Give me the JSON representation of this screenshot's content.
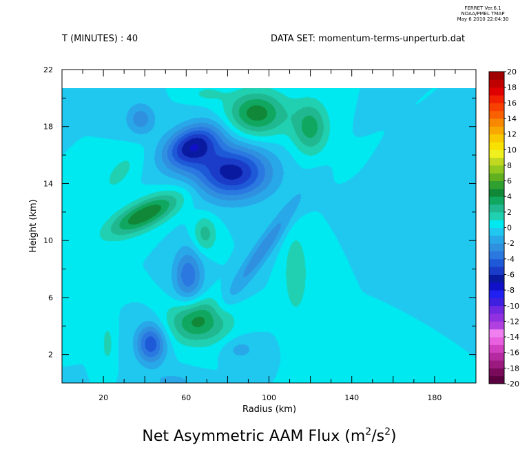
{
  "header": {
    "ferret_version": "FERRET Ver.6.1",
    "ferret_org": "NOAA/PMEL TMAP",
    "ferret_date": "May  6 2010 22:04:30",
    "time_label": "T (MINUTES) : 40",
    "dataset_label": "DATA SET: momentum-terms-unperturb.dat"
  },
  "chart_data": {
    "type": "heatmap",
    "title": "Net Asymmetric AAM Flux (m",
    "title_unit_sup1": "2",
    "title_unit_mid": "/s",
    "title_unit_sup2": "2",
    "title_close": ")",
    "xlabel": "Radius (km)",
    "ylabel": "Height (km)",
    "xlim": [
      0,
      200
    ],
    "ylim": [
      0,
      22
    ],
    "data_ylim": [
      0,
      21
    ],
    "x_ticks": [
      20,
      60,
      100,
      140,
      180
    ],
    "y_ticks": [
      2,
      6,
      10,
      14,
      18
    ],
    "x_ticklabels": [
      "20",
      "60",
      "100",
      "140",
      "180"
    ],
    "y_ticklabels": [
      "2",
      "6",
      "10",
      "14",
      "18",
      "22"
    ],
    "y_ticklabel_values": [
      2,
      6,
      10,
      14,
      18,
      22
    ],
    "colorbar": {
      "levels": [
        -20,
        -19,
        -18,
        -17,
        -16,
        -15,
        -14,
        -13,
        -12,
        -11,
        -10,
        -9,
        -8,
        -7,
        -6,
        -5,
        -4,
        -3,
        -2,
        -1,
        0,
        1,
        2,
        3,
        4,
        5,
        6,
        7,
        8,
        9,
        10,
        11,
        12,
        13,
        14,
        15,
        16,
        17,
        18,
        19,
        20
      ],
      "labels": [
        "20",
        "18",
        "16",
        "14",
        "12",
        "10",
        "8",
        "6",
        "4",
        "2",
        "0",
        "-2",
        "-4",
        "-6",
        "-8",
        "-10",
        "-12",
        "-14",
        "-16",
        "-18",
        "-20"
      ],
      "label_values": [
        20,
        18,
        16,
        14,
        12,
        10,
        8,
        6,
        4,
        2,
        0,
        -2,
        -4,
        -6,
        -8,
        -10,
        -12,
        -14,
        -16,
        -18,
        -20
      ],
      "colors": [
        "#5a0040",
        "#7a0a5a",
        "#9a1a80",
        "#b52aa0",
        "#d040c0",
        "#e860e0",
        "#f080f0",
        "#b040e0",
        "#9030e0",
        "#7028e0",
        "#4020e0",
        "#2020f0",
        "#1010c8",
        "#0a1aa0",
        "#1a3cc8",
        "#1e5ad8",
        "#2a78e0",
        "#3090e0",
        "#28a8e8",
        "#20c8f0",
        "#00e8f0",
        "#20d0b0",
        "#20b890",
        "#10a860",
        "#108838",
        "#30a030",
        "#60b020",
        "#90c820",
        "#c0d820",
        "#f0f020",
        "#f8e000",
        "#f8c800",
        "#f8a800",
        "#f88800",
        "#f86000",
        "#f84000",
        "#f02000",
        "#e00000",
        "#c00000",
        "#a00000",
        "#700000"
      ]
    },
    "features": [
      {
        "x": 43,
        "y": 2.8,
        "sx": 5,
        "sy": 1.0,
        "v": -4.8
      },
      {
        "x": 54,
        "y": 0.1,
        "sx": 8,
        "sy": 0.5,
        "v": -1.3
      },
      {
        "x": 22,
        "y": 2.8,
        "sx": 2,
        "sy": 1.0,
        "v": 1.5
      },
      {
        "x": 66,
        "y": 4.4,
        "sx": 10,
        "sy": 1.1,
        "v": 4.5
      },
      {
        "x": 86,
        "y": 2.4,
        "sx": 6,
        "sy": 0.6,
        "v": -1.4
      },
      {
        "x": 61,
        "y": 7.6,
        "sx": 5,
        "sy": 1.4,
        "v": -3.8
      },
      {
        "x": 69,
        "y": 10.6,
        "sx": 4,
        "sy": 0.9,
        "v": 2.5
      },
      {
        "x": 40,
        "y": 12.0,
        "sx": 6,
        "sy": 1.5,
        "v": 5.0,
        "rot": -50
      },
      {
        "x": 97,
        "y": 9.5,
        "sx": 3.5,
        "sy": 3.0,
        "v": -2.6,
        "rot": -25
      },
      {
        "x": 113,
        "y": 7.8,
        "sx": 4,
        "sy": 2.0,
        "v": 2.0
      },
      {
        "x": 82,
        "y": 15.0,
        "sx": 13,
        "sy": 1.3,
        "v": -6.5,
        "rot": -40
      },
      {
        "x": 63,
        "y": 16.9,
        "sx": 8,
        "sy": 1.2,
        "v": -6.3,
        "rot": -35
      },
      {
        "x": 38,
        "y": 18.8,
        "sx": 5,
        "sy": 0.8,
        "v": -2.6
      },
      {
        "x": 28,
        "y": 15.0,
        "sx": 5,
        "sy": 1.3,
        "v": 1.3,
        "rot": -25
      },
      {
        "x": 94,
        "y": 19.2,
        "sx": 10,
        "sy": 1.1,
        "v": 4.6
      },
      {
        "x": 120,
        "y": 18.2,
        "sx": 6,
        "sy": 1.3,
        "v": 3.5
      },
      {
        "x": 70,
        "y": 20.6,
        "sx": 6,
        "sy": 0.4,
        "v": 1.2
      }
    ]
  }
}
